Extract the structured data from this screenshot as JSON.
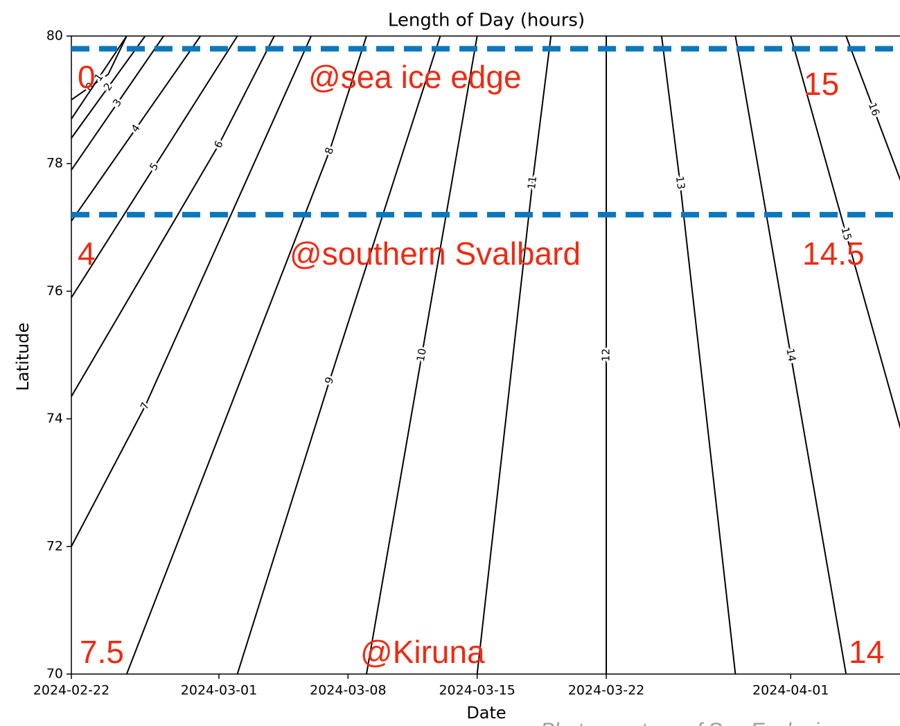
{
  "chart_data": {
    "type": "contour",
    "title": "Length of Day (hours)",
    "x_label": "Date",
    "y_label": "Latitude",
    "xlim": [
      "2024-02-22",
      "2024-04-07"
    ],
    "ylim": [
      70,
      80
    ],
    "xticks": [
      "2024-02-22",
      "2024-03-01",
      "2024-03-08",
      "2024-03-15",
      "2024-03-22",
      "2024-04-01"
    ],
    "yticks": [
      70,
      72,
      74,
      76,
      78,
      80
    ],
    "series": [
      {
        "name": "0",
        "color": "#000000",
        "x": [
          "2024-02-22",
          "2024-02-23",
          "2024-02-24",
          "2024-02-25"
        ],
        "values": [
          79.0,
          79.2,
          79.4,
          80
        ]
      },
      {
        "name": "1",
        "color": "#000000",
        "x": [
          "2024-02-22",
          "2024-02-25"
        ],
        "values": [
          78.7,
          80
        ]
      },
      {
        "name": "2",
        "color": "#000000",
        "x": [
          "2024-02-22",
          "2024-02-26"
        ],
        "values": [
          78.4,
          80
        ]
      },
      {
        "name": "3",
        "color": "#000000",
        "x": [
          "2024-02-22",
          "2024-02-27"
        ],
        "values": [
          77.9,
          80
        ]
      },
      {
        "name": "4",
        "color": "#000000",
        "x": [
          "2024-02-22",
          "2024-02-29"
        ],
        "values": [
          77.1,
          80
        ]
      },
      {
        "name": "5",
        "color": "#000000",
        "x": [
          "2024-02-22",
          "2024-03-02"
        ],
        "values": [
          75.9,
          80
        ]
      },
      {
        "name": "6",
        "color": "#000000",
        "x": [
          "2024-02-22",
          "2024-03-01",
          "2024-03-04"
        ],
        "values": [
          74.35,
          78.3,
          80
        ]
      },
      {
        "name": "7",
        "color": "#000000",
        "x": [
          "2024-02-22",
          "2024-02-26",
          "2024-03-06"
        ],
        "values": [
          72.0,
          74.2,
          80
        ]
      },
      {
        "name": "8",
        "color": "#000000",
        "x": [
          "2024-02-25",
          "2024-03-07",
          "2024-03-09"
        ],
        "values": [
          70,
          78.2,
          80
        ]
      },
      {
        "name": "9",
        "color": "#000000",
        "x": [
          "2024-03-02",
          "2024-03-07",
          "2024-03-13"
        ],
        "values": [
          70,
          74.6,
          80
        ]
      },
      {
        "name": "10",
        "color": "#000000",
        "x": [
          "2024-03-09",
          "2024-03-15"
        ],
        "values": [
          70,
          80
        ]
      },
      {
        "name": "11",
        "color": "#000000",
        "x": [
          "2024-03-15",
          "2024-03-18",
          "2024-03-19"
        ],
        "values": [
          70,
          77.7,
          80
        ]
      },
      {
        "name": "12",
        "color": "#000000",
        "x": [
          "2024-03-22",
          "2024-03-22"
        ],
        "values": [
          70,
          80
        ]
      },
      {
        "name": "13",
        "color": "#000000",
        "x": [
          "2024-03-29",
          "2024-03-26",
          "2024-03-25"
        ],
        "values": [
          70,
          77.7,
          80
        ]
      },
      {
        "name": "14",
        "color": "#000000",
        "x": [
          "2024-04-04",
          "2024-03-29"
        ],
        "values": [
          70,
          80
        ]
      },
      {
        "name": "15",
        "color": "#000000",
        "x": [
          "2024-04-01",
          "2024-04-07"
        ],
        "values": [
          80,
          73.8
        ]
      },
      {
        "name": "16",
        "color": "#000000",
        "x": [
          "2024-04-04",
          "2024-04-07"
        ],
        "values": [
          80,
          77.7
        ]
      }
    ],
    "hlines": [
      {
        "value": 79.8,
        "color": "#0b77bd"
      },
      {
        "value": 77.2,
        "color": "#0b77bd"
      }
    ],
    "annotations": [
      "0",
      "@sea ice edge",
      "15",
      "4",
      "@southern Svalbard",
      "14.5",
      "7.5",
      "@Kiruna",
      "14"
    ],
    "annotation_color": "#ee2a12",
    "credit": "Photo courtesy of Sea Ecologi"
  }
}
